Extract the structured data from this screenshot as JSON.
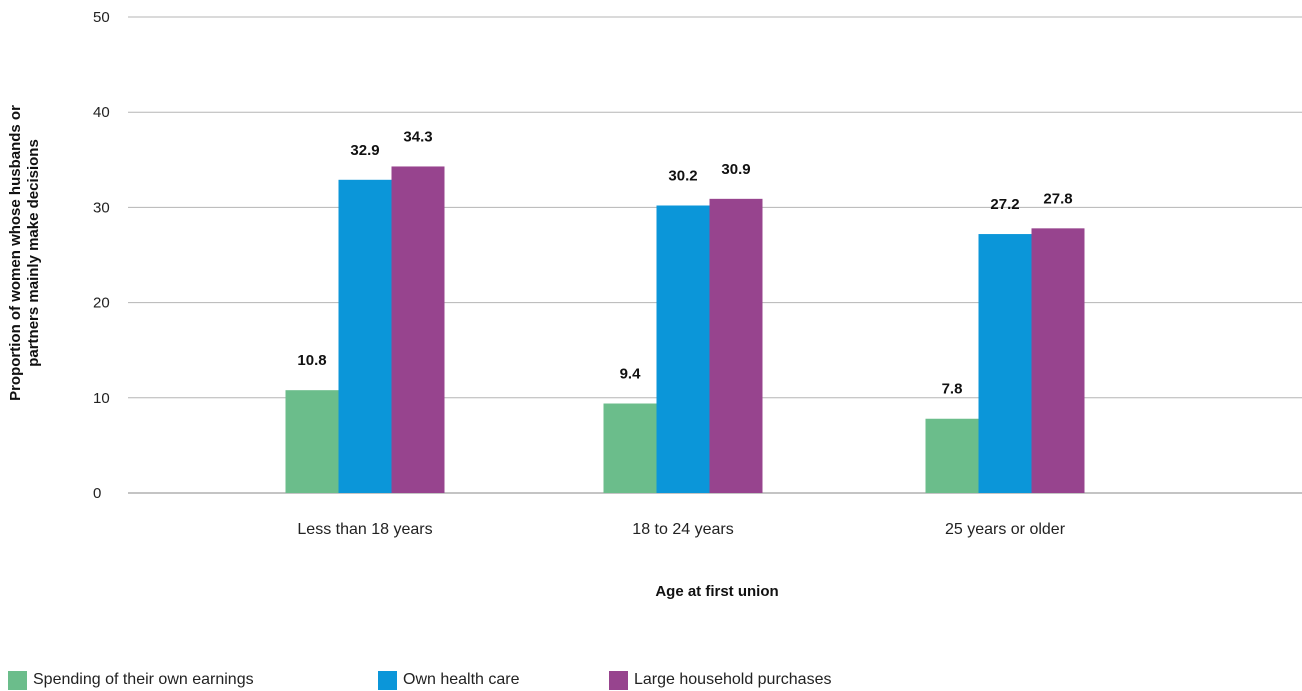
{
  "chart_data": {
    "type": "bar",
    "categories": [
      "Less than 18 years",
      "18 to 24 years",
      "25 years or older"
    ],
    "series": [
      {
        "name": "Spending of their own earnings",
        "values": [
          10.8,
          9.4,
          7.8
        ],
        "color": "#6bbd8b"
      },
      {
        "name": "Own health care",
        "values": [
          32.9,
          30.2,
          27.2
        ],
        "color": "#0b96d9"
      },
      {
        "name": "Large household purchases",
        "values": [
          34.3,
          30.9,
          27.8
        ],
        "color": "#97448e"
      }
    ],
    "xlabel": "Age at first union",
    "ylabel_lines": [
      "Proportion of women whose husbands or",
      "partners mainly make decisions"
    ],
    "ylim": [
      0,
      50
    ],
    "yticks": [
      0,
      10,
      20,
      30,
      40,
      50
    ],
    "grid": true,
    "legend_position": "bottom-left"
  }
}
